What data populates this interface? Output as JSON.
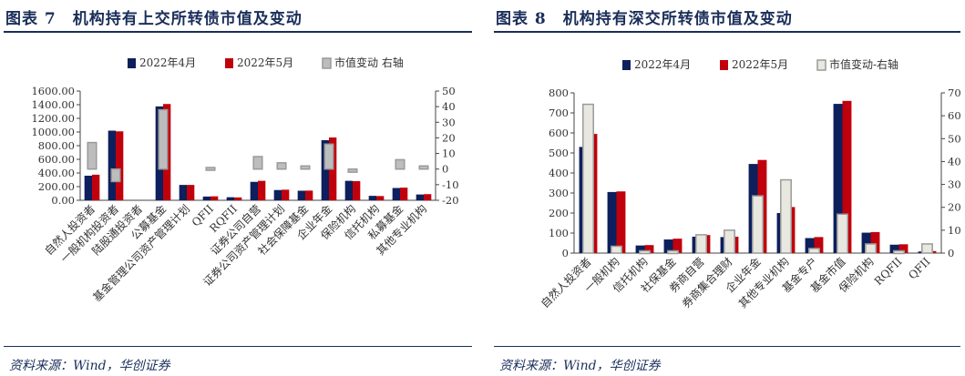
{
  "charts": [
    {
      "title": "图表 7　机构持有上交所转债市值及变动",
      "source": "资料来源：Wind，华创证券",
      "chart_data": {
        "type": "bar",
        "categories": [
          "自然人投资者",
          "一般机构投资者",
          "陆股通投资者",
          "公募基金",
          "基金管理公司资产管理计划",
          "QFII",
          "RQFII",
          "证券公司自营",
          "证券公司资产管理计划",
          "社会保障基金",
          "企业年金",
          "保险机构",
          "信托机构",
          "私募基金",
          "其他专业机构"
        ],
        "series": [
          {
            "name": "2022年4月",
            "color": "#0d1f5c",
            "axis": "left",
            "values": [
              360,
              1020,
              0,
              1375,
              225,
              55,
              45,
              270,
              150,
              140,
              880,
              285,
              65,
              180,
              85
            ]
          },
          {
            "name": "2022年5月",
            "color": "#c0000c",
            "axis": "left",
            "values": [
              375,
              1010,
              0,
              1410,
              225,
              58,
              42,
              285,
              155,
              142,
              920,
              280,
              62,
              185,
              90
            ]
          },
          {
            "name": "市值变动 右轴",
            "color": "#bdbdbd",
            "axis": "right",
            "values": [
              17,
              -8,
              0,
              38,
              0,
              1,
              0,
              8,
              4,
              2,
              16,
              -2,
              0,
              6,
              2
            ]
          }
        ],
        "legend": [
          "2022年4月",
          "2022年5月",
          "市值变动 右轴"
        ],
        "y_left": {
          "min": 0,
          "max": 1600,
          "step": 200,
          "ticks": [
            "0.00",
            "200.00",
            "400.00",
            "600.00",
            "800.00",
            "1000.00",
            "1200.00",
            "1400.00",
            "1600.00"
          ]
        },
        "y_right": {
          "min": -20,
          "max": 50,
          "step": 10,
          "ticks": [
            "-20",
            "-10",
            "0",
            "10",
            "20",
            "30",
            "40",
            "50"
          ]
        },
        "grid": false,
        "legend_position": "top"
      }
    },
    {
      "title": "图表 8　机构持有深交所转债市值及变动",
      "source": "资料来源：Wind，华创证券",
      "chart_data": {
        "type": "bar",
        "categories": [
          "自然人投资者",
          "一般机构",
          "信托机构",
          "社保基金",
          "券商自营",
          "券商集合理财",
          "企业年金",
          "其他专业机构",
          "基金专户",
          "基金市值",
          "保险机构",
          "RQFII",
          "QFII"
        ],
        "series": [
          {
            "name": "2022年4月",
            "color": "#0d1f5c",
            "axis": "left",
            "values": [
              530,
              305,
              38,
              68,
              82,
              80,
              445,
              200,
              75,
              745,
              102,
              42,
              8
            ]
          },
          {
            "name": "2022年5月",
            "color": "#c0000c",
            "axis": "left",
            "values": [
              595,
              308,
              40,
              72,
              90,
              82,
              465,
              230,
              80,
              760,
              105,
              44,
              10
            ]
          },
          {
            "name": "市值变动-右轴",
            "color": "#e8e8e0",
            "axis": "right",
            "values": [
              65,
              3,
              1,
              1,
              8,
              10,
              25,
              32,
              2,
              17,
              4,
              1,
              4
            ]
          }
        ],
        "legend": [
          "2022年4月",
          "2022年5月",
          "市值变动-右轴"
        ],
        "y_left": {
          "min": 0,
          "max": 800,
          "step": 100,
          "ticks": [
            "0",
            "100",
            "200",
            "300",
            "400",
            "500",
            "600",
            "700",
            "800"
          ]
        },
        "y_right": {
          "min": 0,
          "max": 70,
          "step": 10,
          "ticks": [
            "0",
            "10",
            "20",
            "30",
            "40",
            "50",
            "60",
            "70"
          ]
        },
        "grid": false,
        "legend_position": "top"
      }
    }
  ]
}
